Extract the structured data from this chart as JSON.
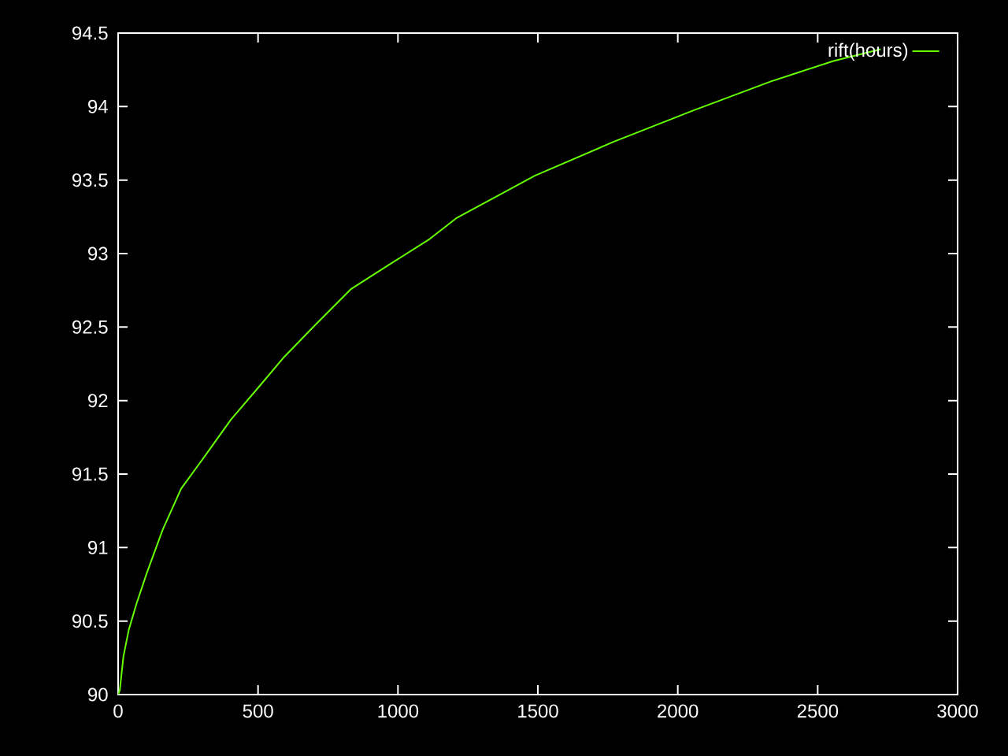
{
  "chart_data": {
    "type": "line",
    "x": [
      0,
      6,
      19,
      38,
      66,
      103,
      159,
      225,
      309,
      403,
      506,
      590,
      702,
      833,
      965,
      1114,
      1208,
      1489,
      1770,
      2051,
      2331,
      2556,
      2725
    ],
    "series": [
      {
        "name": "rift(hours)",
        "color": "#66ff00",
        "values": [
          90,
          90.03,
          90.26,
          90.44,
          90.62,
          90.83,
          91.12,
          91.4,
          91.62,
          91.87,
          92.1,
          92.29,
          92.51,
          92.76,
          92.92,
          93.1,
          93.24,
          93.53,
          93.76,
          93.97,
          94.17,
          94.31,
          94.39
        ]
      }
    ],
    "xlim": [
      0,
      3000
    ],
    "ylim": [
      90,
      94.5
    ],
    "xticks": [
      0,
      500,
      1000,
      1500,
      2000,
      2500,
      3000
    ],
    "yticks": [
      90,
      90.5,
      91,
      91.5,
      92,
      92.5,
      93,
      93.5,
      94,
      94.5
    ],
    "legend": "top right",
    "marker": "none",
    "line_style": "solid"
  }
}
